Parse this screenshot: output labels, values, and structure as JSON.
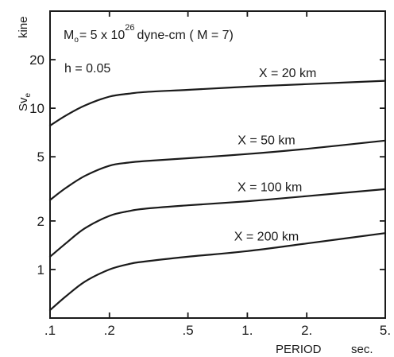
{
  "chart_data": {
    "type": "line",
    "x_scale": "log",
    "y_scale": "log",
    "xlim": [
      0.1,
      5
    ],
    "ylim": [
      0.5,
      40
    ],
    "x_ticks": [
      {
        "value": 0.1,
        "label": ".1"
      },
      {
        "value": 0.2,
        "label": ".2"
      },
      {
        "value": 0.5,
        "label": ".5"
      },
      {
        "value": 1,
        "label": "1."
      },
      {
        "value": 2,
        "label": "2."
      },
      {
        "value": 5,
        "label": "5."
      }
    ],
    "y_ticks": [
      {
        "value": 1,
        "label": "1"
      },
      {
        "value": 2,
        "label": "2"
      },
      {
        "value": 5,
        "label": "5"
      },
      {
        "value": 10,
        "label": "10"
      },
      {
        "value": 20,
        "label": "20"
      }
    ],
    "xlabel": "PERIOD",
    "xlabel_unit": "sec.",
    "ylabel": "Sv",
    "ylabel_sub": "e",
    "ylabel_unit": "kine",
    "annotations": {
      "moment_prefix": "M",
      "moment_sub": "o",
      "moment_mid": "= 5 x 10",
      "moment_exp": "26",
      "moment_suffix": "dyne-cm  ( M = 7)",
      "damping": "h = 0.05"
    },
    "grid": false,
    "series": [
      {
        "name": "X = 20 km",
        "x": [
          0.1,
          0.12,
          0.15,
          0.2,
          0.25,
          0.3,
          0.5,
          1,
          2,
          5
        ],
        "y": [
          7.8,
          9.0,
          10.4,
          11.8,
          12.3,
          12.6,
          13.0,
          13.6,
          14.1,
          14.8
        ]
      },
      {
        "name": "X = 50 km",
        "x": [
          0.1,
          0.12,
          0.15,
          0.2,
          0.25,
          0.3,
          0.5,
          1,
          2,
          5
        ],
        "y": [
          2.7,
          3.2,
          3.8,
          4.4,
          4.6,
          4.7,
          4.9,
          5.2,
          5.6,
          6.3
        ]
      },
      {
        "name": "X = 100 km",
        "x": [
          0.1,
          0.12,
          0.15,
          0.2,
          0.25,
          0.3,
          0.5,
          1,
          2,
          5
        ],
        "y": [
          1.2,
          1.45,
          1.8,
          2.15,
          2.3,
          2.38,
          2.5,
          2.65,
          2.85,
          3.15
        ]
      },
      {
        "name": "X = 200 km",
        "x": [
          0.1,
          0.12,
          0.15,
          0.2,
          0.25,
          0.3,
          0.5,
          1,
          2,
          5
        ],
        "y": [
          0.56,
          0.68,
          0.84,
          1.0,
          1.08,
          1.12,
          1.2,
          1.3,
          1.45,
          1.68
        ]
      }
    ]
  }
}
